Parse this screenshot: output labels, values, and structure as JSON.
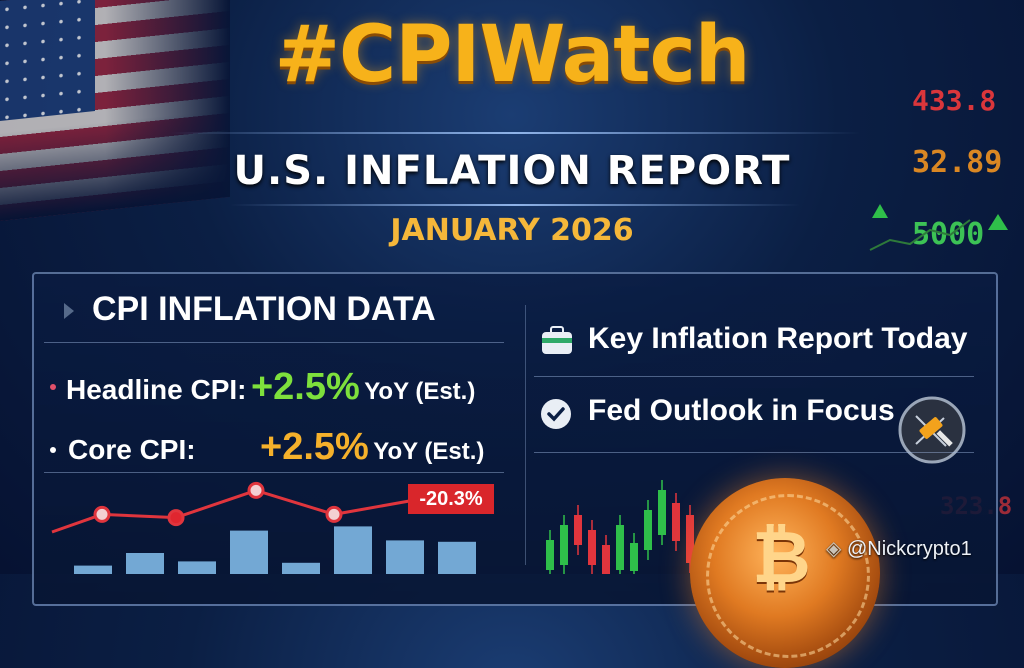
{
  "header": {
    "title": "#CPIWatch",
    "subtitle": "U.S. INFLATION REPORT",
    "date": "JANUARY 2026"
  },
  "ticker_numbers": [
    "433.8",
    "32.89",
    "5000",
    "323.8"
  ],
  "cpi_section": {
    "heading": "CPI INFLATION DATA",
    "rows": [
      {
        "label": "Headline CPI:",
        "value": "+2.5%",
        "suffix": "YoY (Est.)",
        "value_color": "#7ee03c"
      },
      {
        "label": "Core CPI:",
        "value": "+2.5%",
        "suffix": "YoY (Est.)",
        "value_color": "#f5b12b"
      }
    ]
  },
  "chart_data": {
    "type": "bar",
    "annotation": "-20.3%",
    "bars": [
      0.12,
      0.3,
      0.18,
      0.62,
      0.16,
      0.68,
      0.48,
      0.46
    ],
    "line": [
      0.4,
      0.62,
      0.58,
      0.92,
      0.62,
      0.82
    ],
    "line_marker_colors": [
      "#f3d0d2",
      "#e0262f",
      "#f3d0d2",
      "#f3d0d2"
    ]
  },
  "right_panel": {
    "items": [
      {
        "label": "Key Inflation Report Today",
        "icon": "briefcase-icon"
      },
      {
        "label": "Fed Outlook in Focus",
        "icon": "check-circle-icon"
      }
    ]
  },
  "watermark": "@Nickcrypto1",
  "colors": {
    "title": "#f7b21a",
    "accent_green": "#7ee03c",
    "accent_orange": "#f5b12b",
    "accent_red": "#d9262b"
  }
}
